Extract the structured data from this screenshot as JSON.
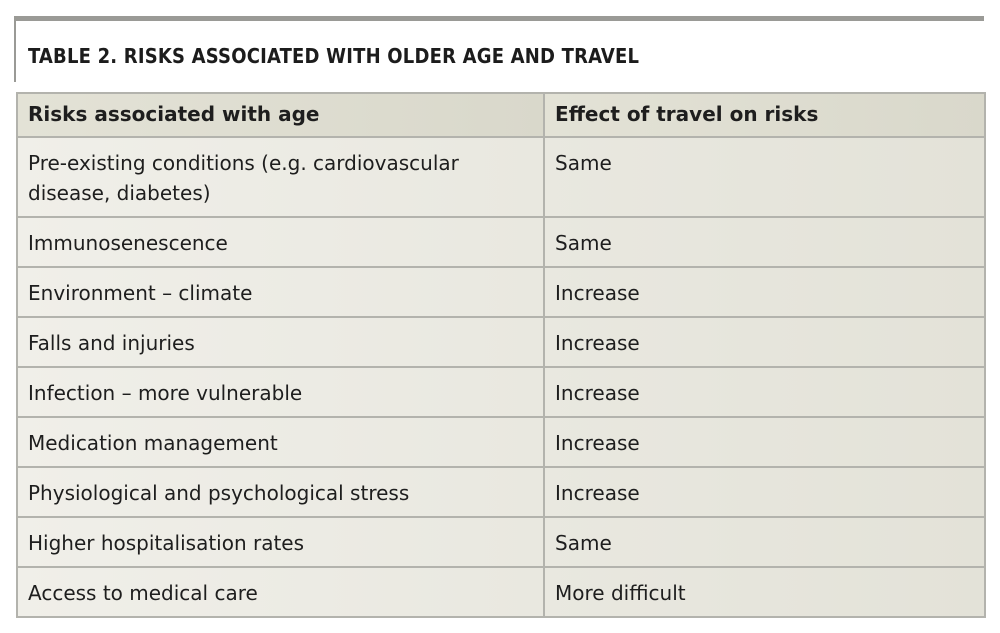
{
  "table": {
    "title_prefix": "TABLE 2.",
    "title_text": " RISKS ASSOCIATED WITH OLDER AGE AND TRAVEL",
    "headers": [
      "Risks associated with age",
      "Effect of travel on risks"
    ],
    "rows": [
      {
        "risk": "Pre-existing conditions (e.g. cardiovascular disease, diabetes)",
        "effect": "Same"
      },
      {
        "risk": "Immunosenescence",
        "effect": "Same"
      },
      {
        "risk": "Environment – climate",
        "effect": "Increase"
      },
      {
        "risk": "Falls and injuries",
        "effect": "Increase"
      },
      {
        "risk": "Infection – more vulnerable",
        "effect": "Increase"
      },
      {
        "risk": "Medication management",
        "effect": "Increase"
      },
      {
        "risk": "Physiological and psychological stress",
        "effect": "Increase"
      },
      {
        "risk": "Higher hospitalisation rates",
        "effect": "Same"
      },
      {
        "risk": "Access to medical care",
        "effect": "More difficult"
      }
    ]
  },
  "colors": {
    "frame_border": "#9a9a96",
    "cell_border": "#b3b3ad",
    "header_bg": "#dedcd0",
    "body_bg": "#ebeae2",
    "text": "#1e1e1e"
  }
}
